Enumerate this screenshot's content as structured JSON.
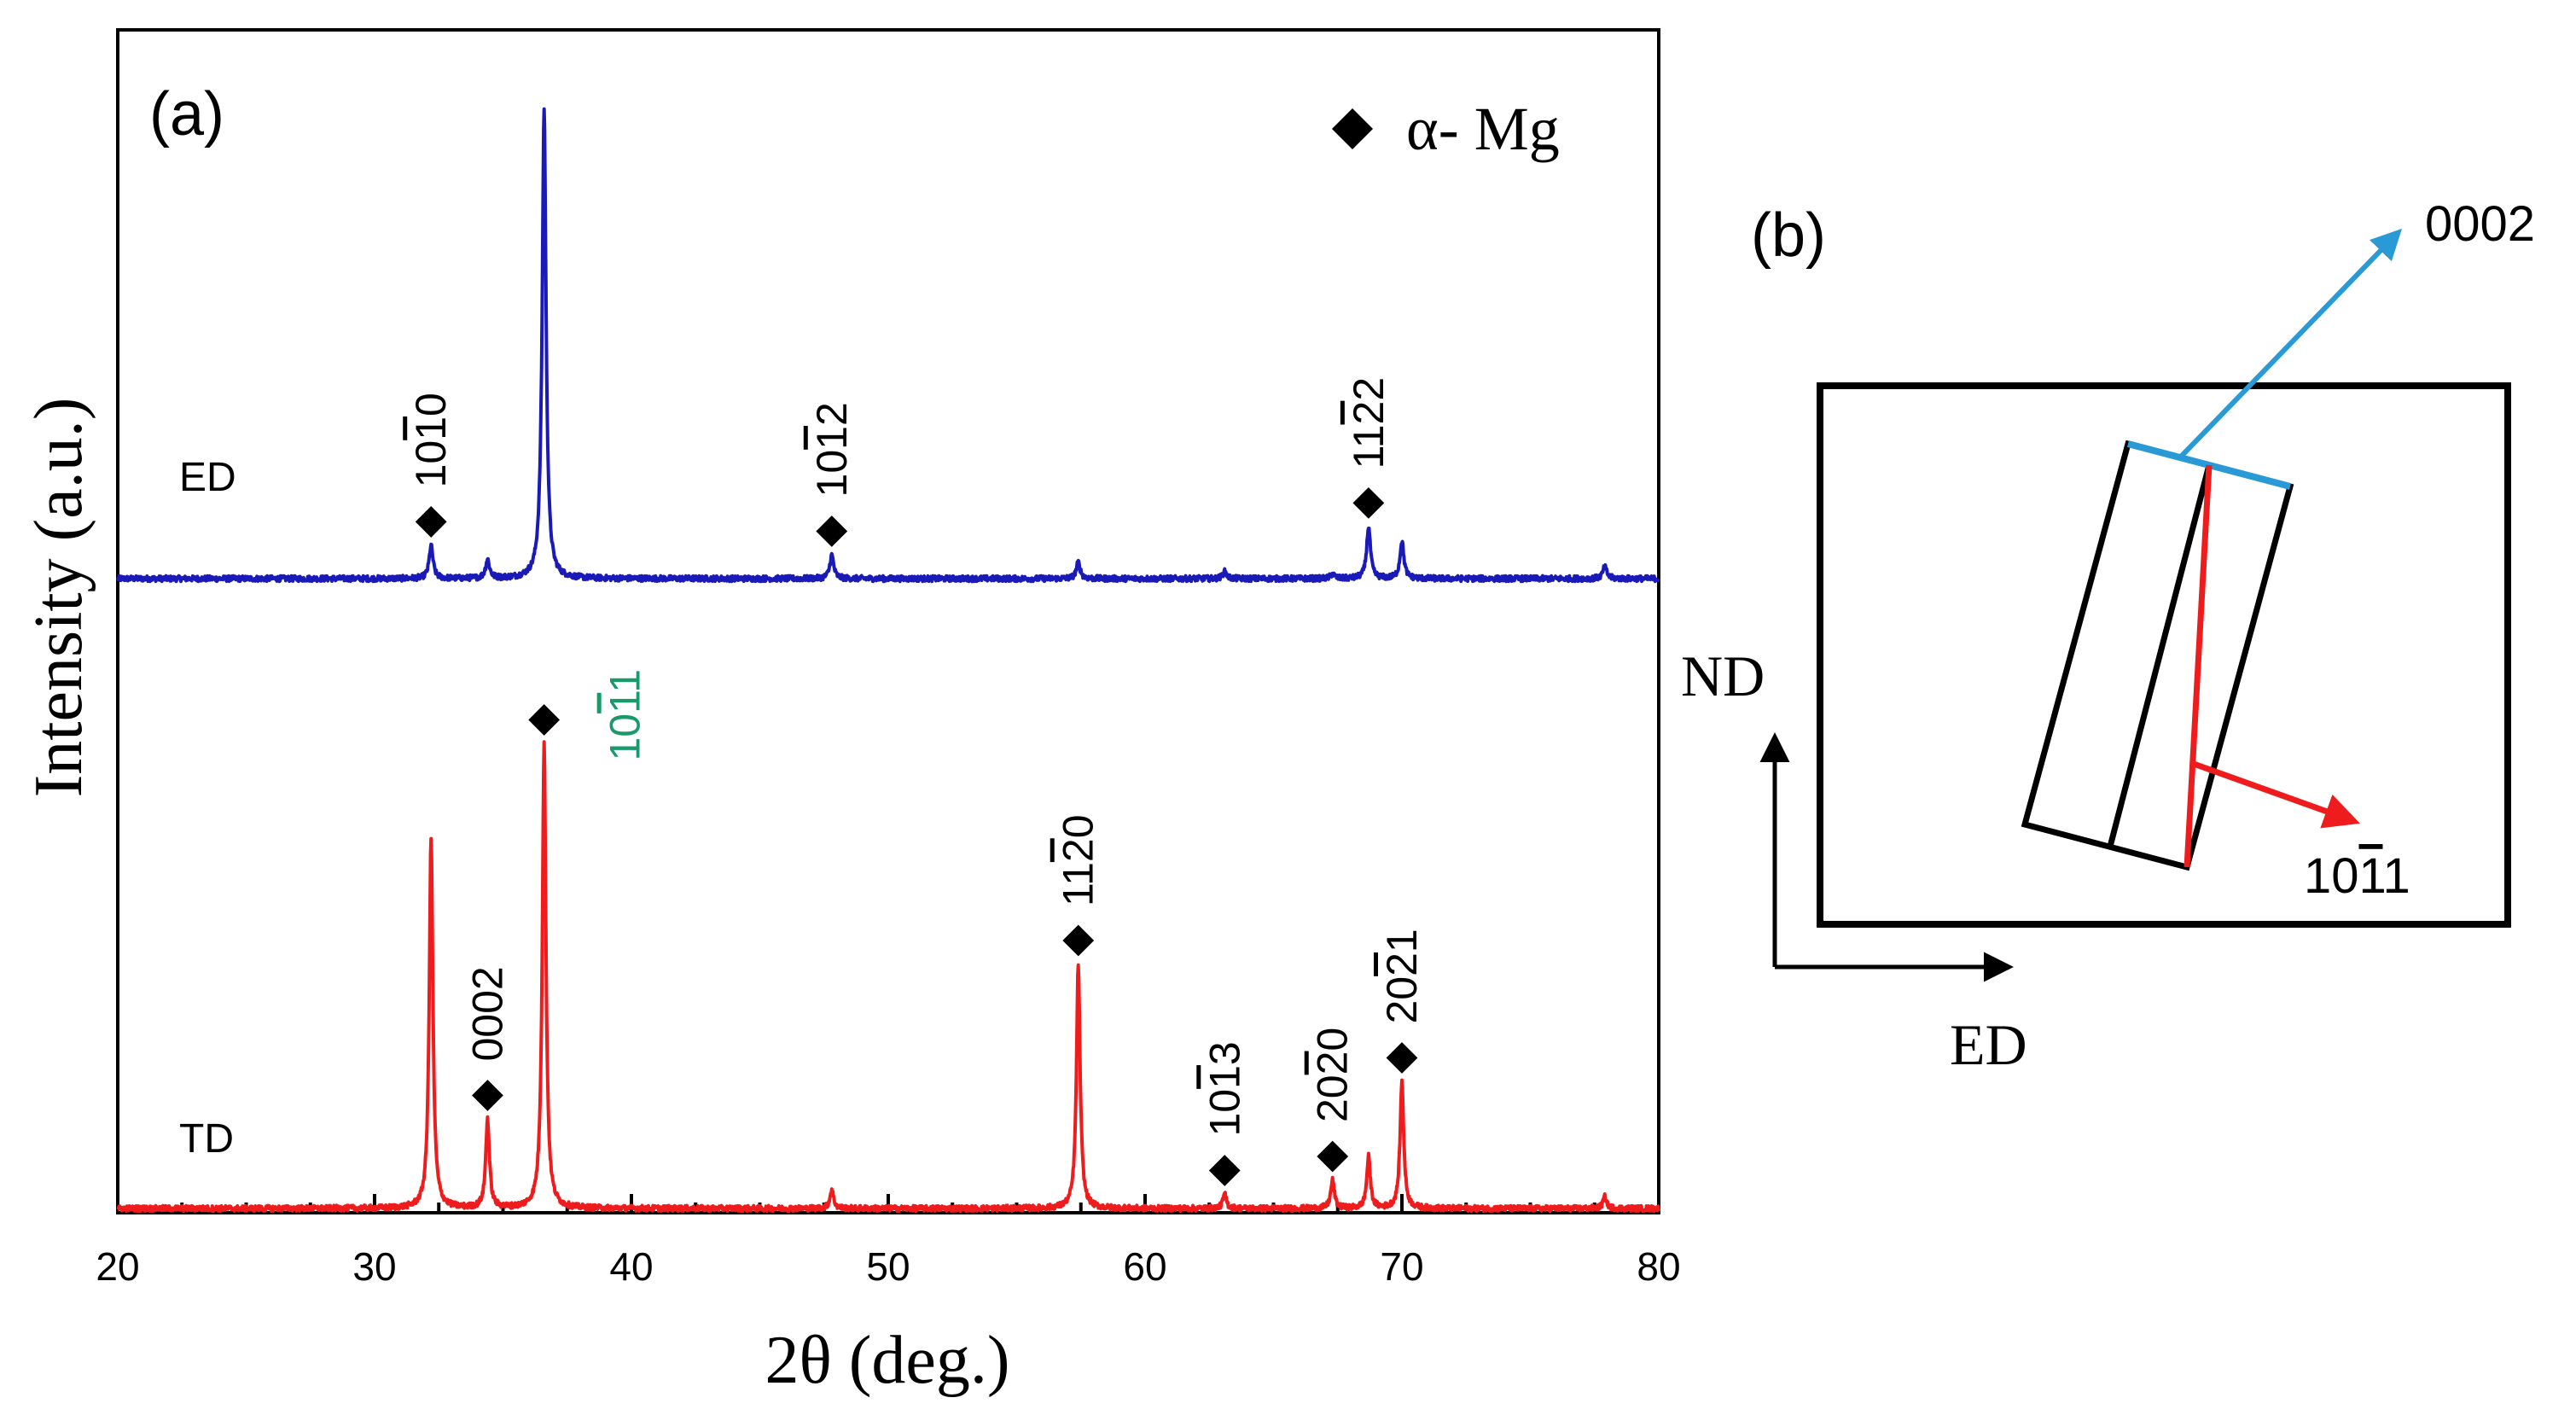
{
  "chart_data": [
    {
      "type": "line",
      "panel_label": "(a)",
      "xlabel": "2θ (deg.)",
      "ylabel": "Intensity (a.u.)",
      "xlim": [
        20,
        80
      ],
      "x_ticks": [
        20,
        30,
        40,
        50,
        60,
        70,
        80
      ],
      "y_ticks": [],
      "legend": {
        "marker": "diamond",
        "label": "α- Mg",
        "placement": "top-right"
      },
      "series": [
        {
          "name": "ED",
          "color": "#1a1ab8",
          "baseline_level": 0,
          "peaks": [
            {
              "x": 32.2,
              "h": 0.07
            },
            {
              "x": 34.4,
              "h": 0.04
            },
            {
              "x": 36.6,
              "h": 1.0
            },
            {
              "x": 47.8,
              "h": 0.05
            },
            {
              "x": 57.4,
              "h": 0.035
            },
            {
              "x": 63.1,
              "h": 0.015
            },
            {
              "x": 67.3,
              "h": 0.01
            },
            {
              "x": 68.7,
              "h": 0.11
            },
            {
              "x": 70.0,
              "h": 0.08
            },
            {
              "x": 77.9,
              "h": 0.025
            }
          ],
          "labels": [
            {
              "text": "10",
              "bar_text": "1",
              "tail_text": "0",
              "x": 32.2
            },
            {
              "text": "10",
              "bar_text": "1",
              "tail_text": "2",
              "x": 47.8
            },
            {
              "text": "11",
              "bar_text": "2",
              "tail_text": "2",
              "x": 68.7
            }
          ]
        },
        {
          "name": "TD",
          "color": "#ee1c1c",
          "baseline_level": 0,
          "peaks": [
            {
              "x": 32.2,
              "h": 0.79
            },
            {
              "x": 34.4,
              "h": 0.19
            },
            {
              "x": 36.6,
              "h": 0.99
            },
            {
              "x": 47.8,
              "h": 0.04
            },
            {
              "x": 57.4,
              "h": 0.52
            },
            {
              "x": 63.1,
              "h": 0.03
            },
            {
              "x": 67.3,
              "h": 0.06
            },
            {
              "x": 68.7,
              "h": 0.11
            },
            {
              "x": 70.0,
              "h": 0.27
            },
            {
              "x": 77.9,
              "h": 0.025
            }
          ],
          "labels": [
            {
              "text": "0002",
              "x": 34.4
            },
            {
              "text": "10",
              "bar_text": "1",
              "tail_text": "1",
              "x": 36.6,
              "color": "#1a9a6b"
            },
            {
              "text": "11",
              "bar_text": "2",
              "tail_text": "0",
              "x": 57.4
            },
            {
              "text": "10",
              "bar_text": "1",
              "tail_text": "3",
              "x": 63.1
            },
            {
              "text": "20",
              "bar_text": "2",
              "tail_text": "0",
              "x": 67.3
            },
            {
              "text": "20",
              "bar_text": "2",
              "tail_text": "1",
              "x": 70.0
            }
          ]
        }
      ]
    },
    {
      "type": "diagram",
      "panel_label": "(b)",
      "axes": {
        "vertical": "ND",
        "horizontal": "ED"
      },
      "vectors": [
        {
          "label": "0002",
          "color": "#2a9ad6"
        },
        {
          "label": "10",
          "bar_text": "1",
          "tail_text": "1",
          "color": "#ee1c1c"
        }
      ]
    }
  ]
}
